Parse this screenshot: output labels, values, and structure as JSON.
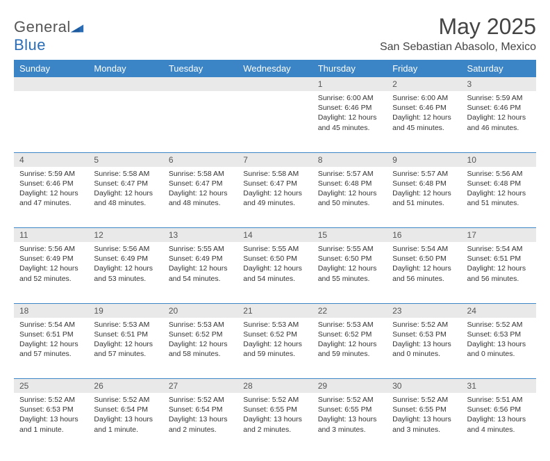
{
  "logo": {
    "text_gray": "General",
    "text_blue": "Blue"
  },
  "title": "May 2025",
  "location": "San Sebastian Abasolo, Mexico",
  "day_headers": [
    "Sunday",
    "Monday",
    "Tuesday",
    "Wednesday",
    "Thursday",
    "Friday",
    "Saturday"
  ],
  "colors": {
    "header_bg": "#3b84c5",
    "header_text": "#ffffff",
    "daynum_bg": "#e9e9e9",
    "border": "#3b84c5",
    "body_text": "#333333",
    "title_text": "#444444"
  },
  "weeks": [
    {
      "nums": [
        "",
        "",
        "",
        "",
        "1",
        "2",
        "3"
      ],
      "cells": [
        null,
        null,
        null,
        null,
        {
          "sunrise": "6:00 AM",
          "sunset": "6:46 PM",
          "daylight": "12 hours and 45 minutes."
        },
        {
          "sunrise": "6:00 AM",
          "sunset": "6:46 PM",
          "daylight": "12 hours and 45 minutes."
        },
        {
          "sunrise": "5:59 AM",
          "sunset": "6:46 PM",
          "daylight": "12 hours and 46 minutes."
        }
      ]
    },
    {
      "nums": [
        "4",
        "5",
        "6",
        "7",
        "8",
        "9",
        "10"
      ],
      "cells": [
        {
          "sunrise": "5:59 AM",
          "sunset": "6:46 PM",
          "daylight": "12 hours and 47 minutes."
        },
        {
          "sunrise": "5:58 AM",
          "sunset": "6:47 PM",
          "daylight": "12 hours and 48 minutes."
        },
        {
          "sunrise": "5:58 AM",
          "sunset": "6:47 PM",
          "daylight": "12 hours and 48 minutes."
        },
        {
          "sunrise": "5:58 AM",
          "sunset": "6:47 PM",
          "daylight": "12 hours and 49 minutes."
        },
        {
          "sunrise": "5:57 AM",
          "sunset": "6:48 PM",
          "daylight": "12 hours and 50 minutes."
        },
        {
          "sunrise": "5:57 AM",
          "sunset": "6:48 PM",
          "daylight": "12 hours and 51 minutes."
        },
        {
          "sunrise": "5:56 AM",
          "sunset": "6:48 PM",
          "daylight": "12 hours and 51 minutes."
        }
      ]
    },
    {
      "nums": [
        "11",
        "12",
        "13",
        "14",
        "15",
        "16",
        "17"
      ],
      "cells": [
        {
          "sunrise": "5:56 AM",
          "sunset": "6:49 PM",
          "daylight": "12 hours and 52 minutes."
        },
        {
          "sunrise": "5:56 AM",
          "sunset": "6:49 PM",
          "daylight": "12 hours and 53 minutes."
        },
        {
          "sunrise": "5:55 AM",
          "sunset": "6:49 PM",
          "daylight": "12 hours and 54 minutes."
        },
        {
          "sunrise": "5:55 AM",
          "sunset": "6:50 PM",
          "daylight": "12 hours and 54 minutes."
        },
        {
          "sunrise": "5:55 AM",
          "sunset": "6:50 PM",
          "daylight": "12 hours and 55 minutes."
        },
        {
          "sunrise": "5:54 AM",
          "sunset": "6:50 PM",
          "daylight": "12 hours and 56 minutes."
        },
        {
          "sunrise": "5:54 AM",
          "sunset": "6:51 PM",
          "daylight": "12 hours and 56 minutes."
        }
      ]
    },
    {
      "nums": [
        "18",
        "19",
        "20",
        "21",
        "22",
        "23",
        "24"
      ],
      "cells": [
        {
          "sunrise": "5:54 AM",
          "sunset": "6:51 PM",
          "daylight": "12 hours and 57 minutes."
        },
        {
          "sunrise": "5:53 AM",
          "sunset": "6:51 PM",
          "daylight": "12 hours and 57 minutes."
        },
        {
          "sunrise": "5:53 AM",
          "sunset": "6:52 PM",
          "daylight": "12 hours and 58 minutes."
        },
        {
          "sunrise": "5:53 AM",
          "sunset": "6:52 PM",
          "daylight": "12 hours and 59 minutes."
        },
        {
          "sunrise": "5:53 AM",
          "sunset": "6:52 PM",
          "daylight": "12 hours and 59 minutes."
        },
        {
          "sunrise": "5:52 AM",
          "sunset": "6:53 PM",
          "daylight": "13 hours and 0 minutes."
        },
        {
          "sunrise": "5:52 AM",
          "sunset": "6:53 PM",
          "daylight": "13 hours and 0 minutes."
        }
      ]
    },
    {
      "nums": [
        "25",
        "26",
        "27",
        "28",
        "29",
        "30",
        "31"
      ],
      "cells": [
        {
          "sunrise": "5:52 AM",
          "sunset": "6:53 PM",
          "daylight": "13 hours and 1 minute."
        },
        {
          "sunrise": "5:52 AM",
          "sunset": "6:54 PM",
          "daylight": "13 hours and 1 minute."
        },
        {
          "sunrise": "5:52 AM",
          "sunset": "6:54 PM",
          "daylight": "13 hours and 2 minutes."
        },
        {
          "sunrise": "5:52 AM",
          "sunset": "6:55 PM",
          "daylight": "13 hours and 2 minutes."
        },
        {
          "sunrise": "5:52 AM",
          "sunset": "6:55 PM",
          "daylight": "13 hours and 3 minutes."
        },
        {
          "sunrise": "5:52 AM",
          "sunset": "6:55 PM",
          "daylight": "13 hours and 3 minutes."
        },
        {
          "sunrise": "5:51 AM",
          "sunset": "6:56 PM",
          "daylight": "13 hours and 4 minutes."
        }
      ]
    }
  ],
  "labels": {
    "sunrise": "Sunrise:",
    "sunset": "Sunset:",
    "daylight": "Daylight:"
  }
}
